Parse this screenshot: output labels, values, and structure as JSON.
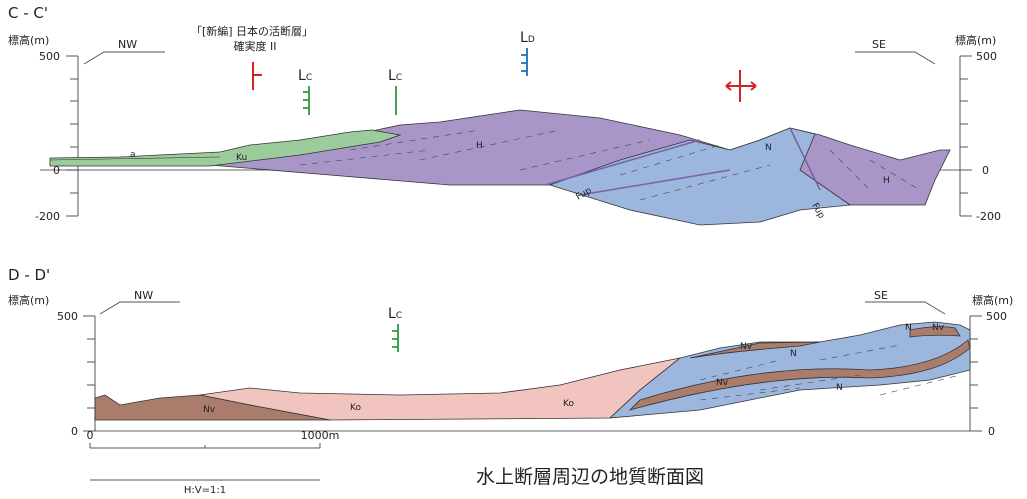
{
  "title": "水上断層周辺の地質断面図",
  "sections": [
    {
      "name": "C - C'",
      "elevation_unit_left": "標高(m)",
      "elevation_unit_right": "標高(m)",
      "left_labels": [
        "500",
        "0",
        "-200"
      ],
      "right_labels": [
        "500",
        "0",
        "-200"
      ],
      "nw": "NW",
      "se": "SE",
      "source_note": [
        "「[新編] 日本の活断層」",
        "確実度 II"
      ],
      "markers": [
        {
          "letter": "L",
          "sub": "C"
        },
        {
          "letter": "L",
          "sub": "C"
        },
        {
          "letter": "L",
          "sub": "D"
        }
      ],
      "units": [
        "a",
        "Ku",
        "H",
        "N",
        "Fup",
        "Fup",
        "H"
      ]
    },
    {
      "name": "D - D'",
      "elevation_unit_left": "標高(m)",
      "elevation_unit_right": "標高(m)",
      "left_labels": [
        "500",
        "0"
      ],
      "right_labels": [
        "500",
        "0"
      ],
      "nw": "NW",
      "se": "SE",
      "markers": [
        {
          "letter": "L",
          "sub": "C"
        }
      ],
      "units": [
        "Nv",
        "Ko",
        "Ko",
        "Nv",
        "N",
        "Nv",
        "N",
        "N",
        "Nv"
      ]
    }
  ],
  "scale": {
    "start": "0",
    "end": "1000m",
    "ratio": "H:V=1:1"
  }
}
